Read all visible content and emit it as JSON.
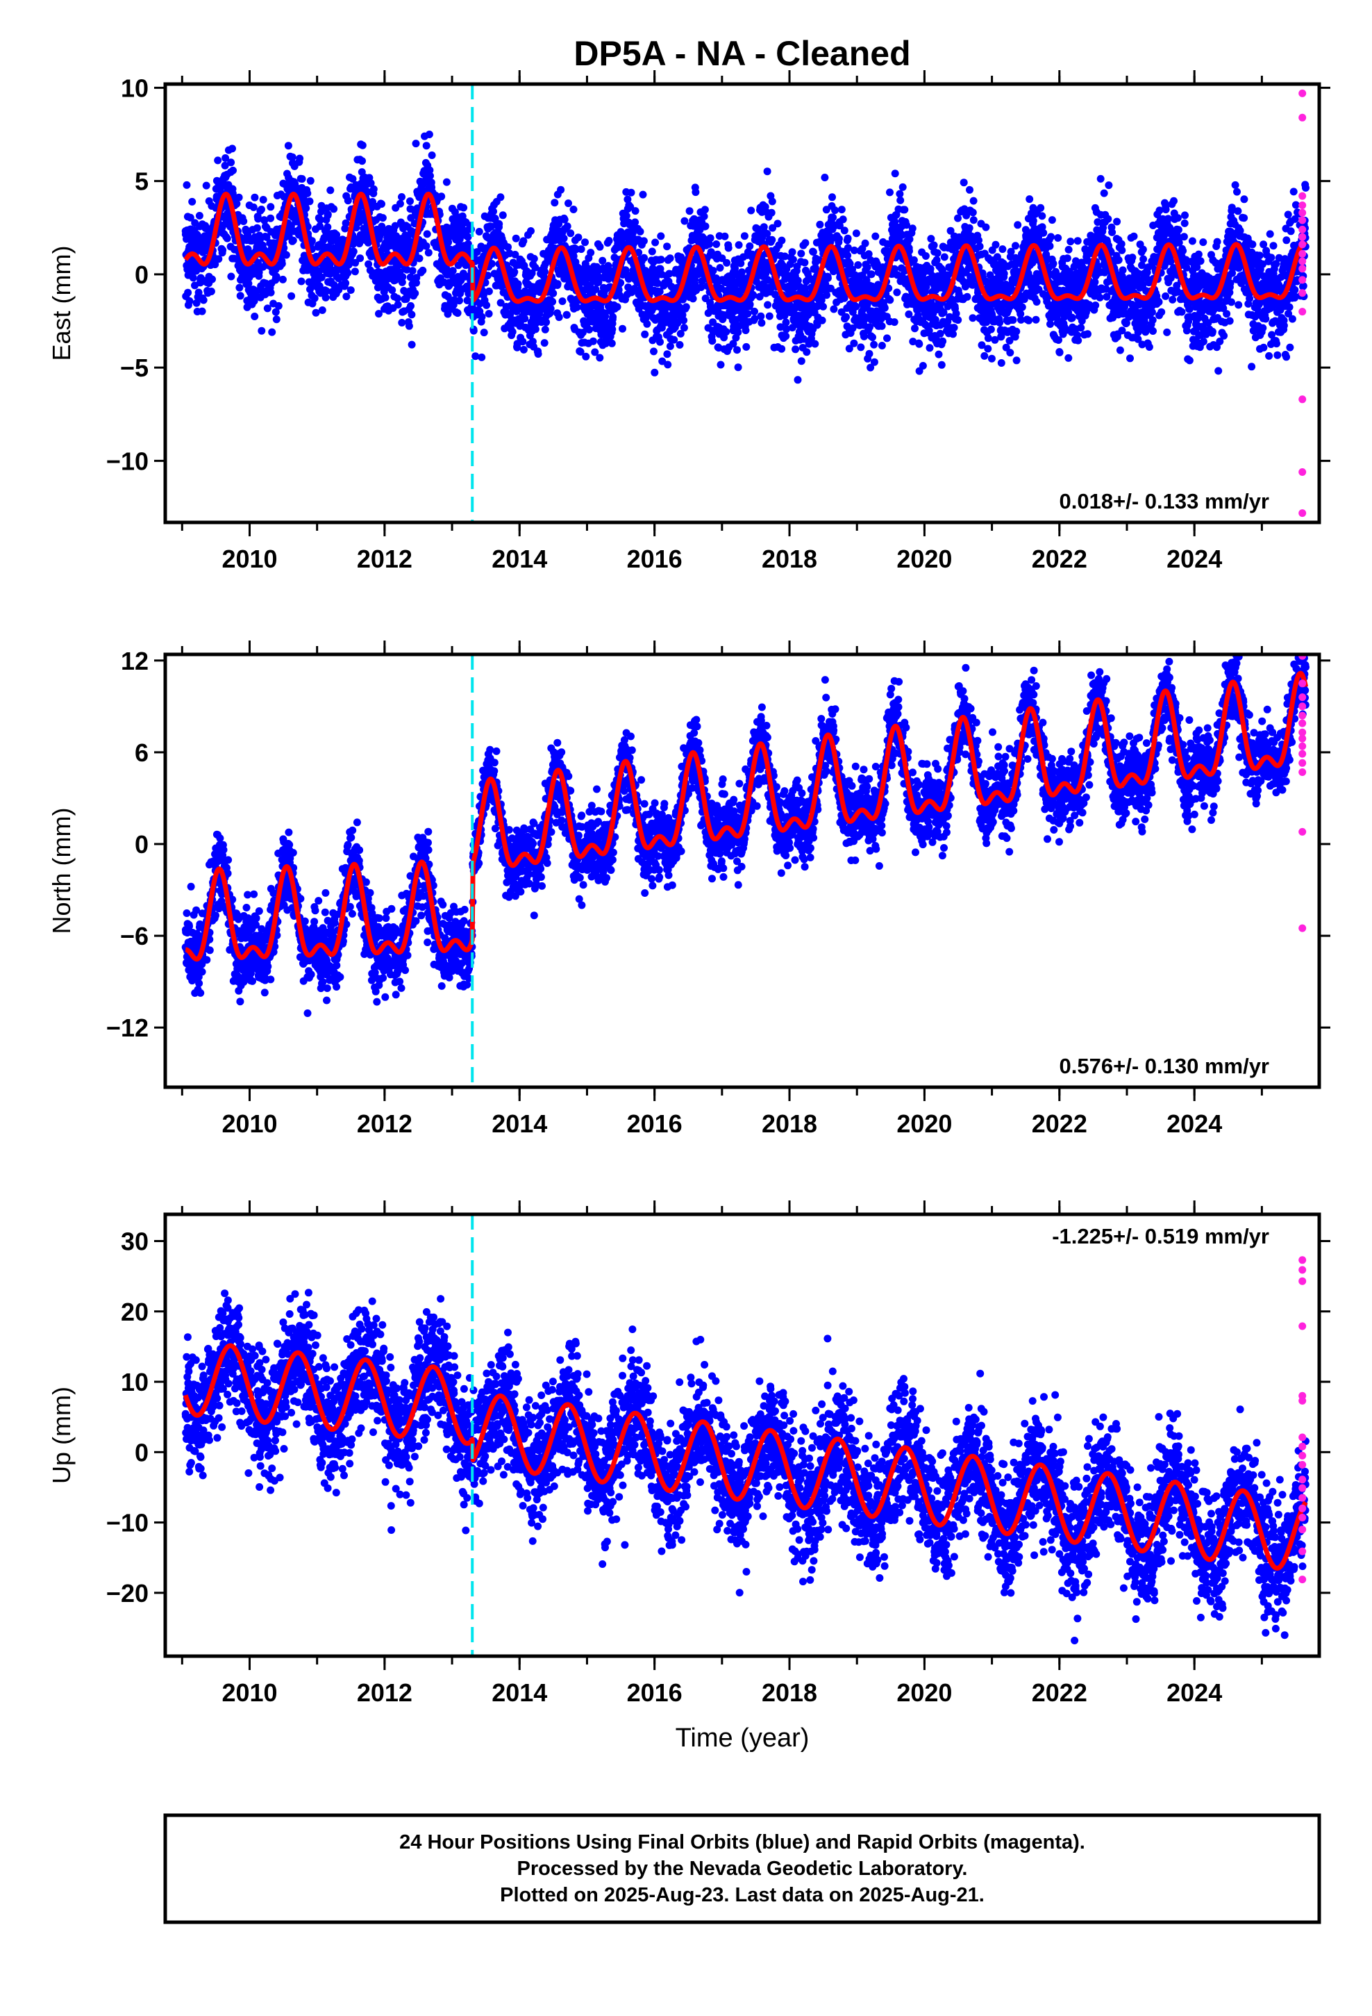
{
  "title": "DP5A  - NA - Cleaned",
  "colors": {
    "final_orbits": "#0000ff",
    "rapid_orbits": "#ff22dd",
    "model_fit": "#ff0000",
    "offset_line": "#00e5ee",
    "axes": "#000000"
  },
  "chart_data": [
    {
      "type": "scatter",
      "panel": "east",
      "ylabel": "East (mm)",
      "xlabel": "",
      "xlim": [
        2008.75,
        2025.85
      ],
      "ylim": [
        -13.3,
        10.2
      ],
      "yticks": [
        10,
        5,
        0,
        -5,
        -10
      ],
      "ytick_labels": [
        "10",
        "5",
        "0",
        "−5",
        "−10"
      ],
      "xticks": [
        2010,
        2012,
        2014,
        2016,
        2018,
        2020,
        2022,
        2024
      ],
      "rate_label": "0.018+/- 0.133 mm/yr",
      "rate_position": "bottom-right",
      "offset_epoch": 2013.3,
      "model": {
        "segments": [
          {
            "start": 2009.05,
            "end": 2013.3,
            "base": 1.8,
            "trend": 0.0,
            "amp1": 1.6,
            "phase1": 2009.65,
            "amp2": 0.9,
            "phase2": 2009.65
          },
          {
            "start": 2013.3,
            "end": 2025.65,
            "base": -0.5,
            "trend": 0.018,
            "amp1": 1.35,
            "phase1": 2014.62,
            "amp2": 0.55,
            "phase2": 2014.62
          }
        ],
        "scatter_sd": 1.4
      },
      "rapid_points": {
        "x": [
          2025.6,
          2025.6,
          2025.6,
          2025.6,
          2025.6,
          2025.6,
          2025.6,
          2025.6,
          2025.6,
          2025.6,
          2025.6,
          2025.6,
          2025.6,
          2025.6,
          2025.6,
          2025.6,
          2025.6,
          2025.6
        ],
        "y": [
          9.7,
          8.4,
          4.2,
          3.7,
          3.3,
          2.9,
          2.4,
          2.0,
          1.6,
          1.1,
          0.7,
          0.3,
          -0.3,
          -1.0,
          -2.0,
          -6.7,
          -10.6,
          -12.8
        ]
      }
    },
    {
      "type": "scatter",
      "panel": "north",
      "ylabel": "North (mm)",
      "xlabel": "",
      "xlim": [
        2008.75,
        2025.85
      ],
      "ylim": [
        -15.9,
        12.4
      ],
      "yticks": [
        12,
        6,
        0,
        -6,
        -12
      ],
      "ytick_labels": [
        "12",
        "6",
        "0",
        "−6",
        "−12"
      ],
      "xticks": [
        2010,
        2012,
        2014,
        2016,
        2018,
        2020,
        2022,
        2024
      ],
      "rate_label": "0.576+/- 0.130 mm/yr",
      "rate_position": "bottom-right",
      "offset_epoch": 2013.3,
      "model": {
        "segments": [
          {
            "start": 2009.05,
            "end": 2013.3,
            "base": -5.6,
            "trend": 0.15,
            "amp1": 2.6,
            "phase1": 2009.55,
            "amp2": 1.3,
            "phase2": 2009.55
          },
          {
            "start": 2013.3,
            "end": 2025.65,
            "base": 0.2,
            "trend": 0.576,
            "amp1": 2.6,
            "phase1": 2014.57,
            "amp2": 1.3,
            "phase2": 2014.57
          }
        ],
        "scatter_sd": 1.2
      },
      "rapid_points": {
        "x": [
          2025.6,
          2025.6,
          2025.6,
          2025.6,
          2025.6,
          2025.6,
          2025.6,
          2025.6,
          2025.6,
          2025.6,
          2025.6,
          2025.6,
          2025.6,
          2025.6
        ],
        "y": [
          12.3,
          10.5,
          9.6,
          9.0,
          8.4,
          7.9,
          7.3,
          6.9,
          6.4,
          5.9,
          5.3,
          4.7,
          0.8,
          -5.5
        ]
      }
    },
    {
      "type": "scatter",
      "panel": "up",
      "ylabel": "Up (mm)",
      "xlabel": "Time (year)",
      "xlim": [
        2008.75,
        2025.85
      ],
      "ylim": [
        -29.0,
        33.8
      ],
      "yticks": [
        30,
        20,
        10,
        0,
        -10,
        -20
      ],
      "ytick_labels": [
        "30",
        "20",
        "10",
        "0",
        "−10",
        "−20"
      ],
      "xticks": [
        2010,
        2012,
        2014,
        2016,
        2018,
        2020,
        2022,
        2024
      ],
      "rate_label": "-1.225+/- 0.519 mm/yr",
      "rate_position": "top-right",
      "offset_epoch": 2013.3,
      "model": {
        "segments": [
          {
            "start": 2009.05,
            "end": 2013.3,
            "base": 10.6,
            "trend": -1.0,
            "amp1": 5.2,
            "phase1": 2009.72,
            "amp2": 0.0,
            "phase2": 2009.72
          },
          {
            "start": 2013.3,
            "end": 2025.65,
            "base": 3.3,
            "trend": -1.225,
            "amp1": 5.2,
            "phase1": 2013.72,
            "amp2": 0.0,
            "phase2": 2013.72
          }
        ],
        "scatter_sd": 4.3
      },
      "rapid_points": {
        "x": [
          2025.6,
          2025.6,
          2025.6,
          2025.6,
          2025.6,
          2025.6,
          2025.6,
          2025.6,
          2025.6,
          2025.6,
          2025.6,
          2025.6,
          2025.6,
          2025.6,
          2025.6,
          2025.6,
          2025.6,
          2025.6
        ],
        "y": [
          27.3,
          25.9,
          24.3,
          17.9,
          8.0,
          7.3,
          2.1,
          0.8,
          -0.5,
          -1.8,
          -3.9,
          -5.1,
          -6.5,
          -8.0,
          -9.3,
          -11.0,
          -14.1,
          -18.1
        ]
      }
    }
  ],
  "footer": {
    "line1": "24 Hour Positions Using Final Orbits (blue) and Rapid Orbits (magenta).",
    "line2": "Processed by the Nevada Geodetic Laboratory.",
    "line3": "Plotted on 2025-Aug-23. Last data on 2025-Aug-21."
  }
}
